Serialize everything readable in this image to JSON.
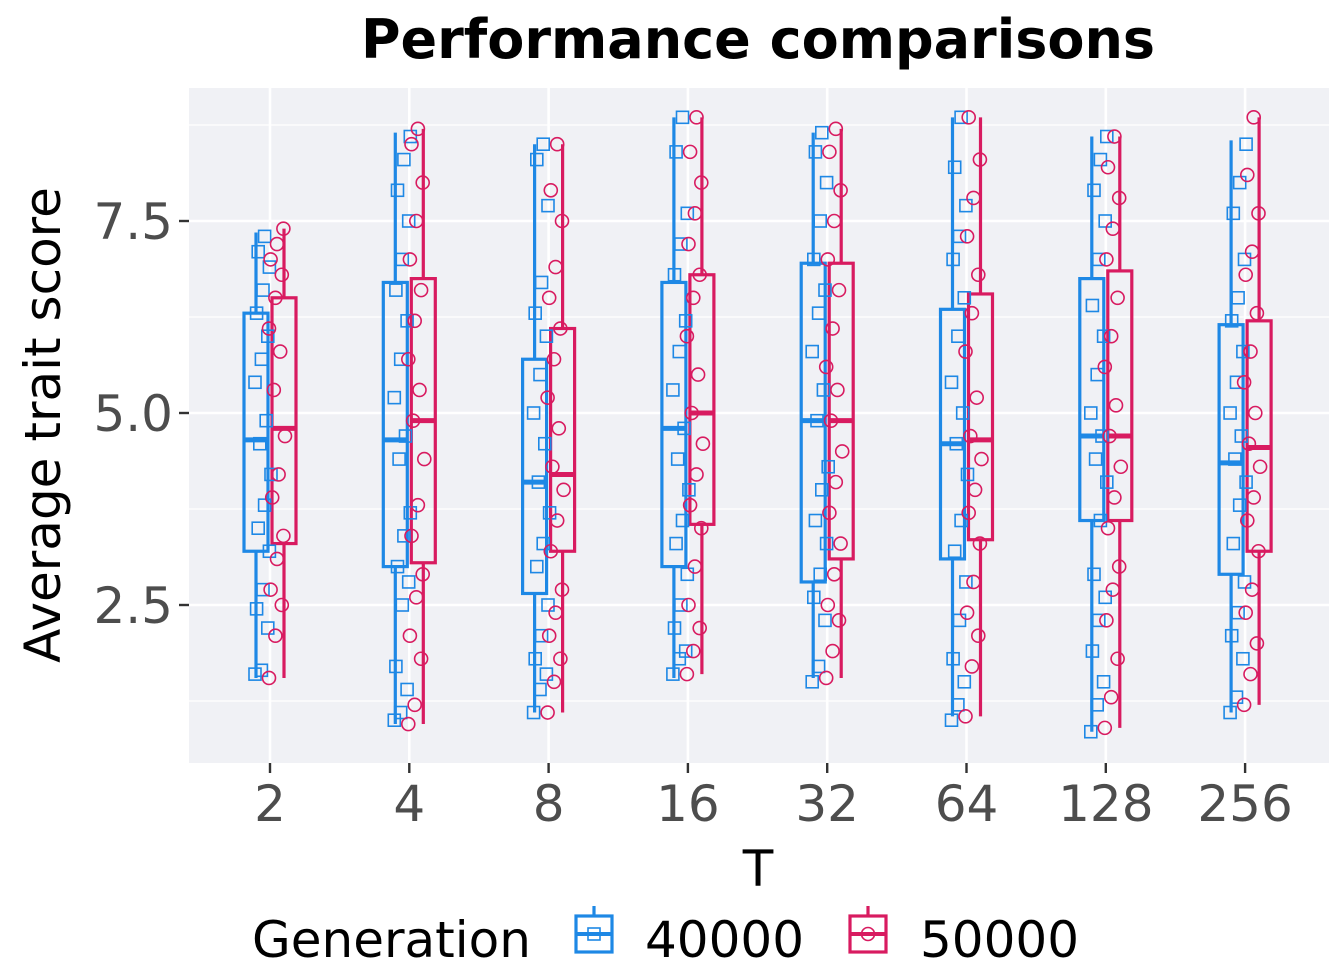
{
  "chart_data": {
    "type": "boxplot",
    "title": "Performance comparisons",
    "xlabel": "T",
    "ylabel": "Average trait score",
    "categories": [
      "2",
      "4",
      "8",
      "16",
      "32",
      "64",
      "128",
      "256"
    ],
    "y_ticks": [
      2.5,
      5.0,
      7.5
    ],
    "y_tick_labels": [
      "2.5",
      "5.0",
      "7.5"
    ],
    "ylim": [
      0.5,
      9.2
    ],
    "grid": true,
    "legend": {
      "title": "Generation",
      "position": "bottom",
      "entries": [
        "40000",
        "50000"
      ]
    },
    "series": [
      {
        "name": "40000",
        "color": "#1e88e5",
        "marker": "square",
        "boxes": [
          {
            "min": 1.55,
            "q1": 3.2,
            "median": 4.65,
            "q3": 6.3,
            "max": 7.35
          },
          {
            "min": 0.95,
            "q1": 3.0,
            "median": 4.65,
            "q3": 6.7,
            "max": 8.65
          },
          {
            "min": 1.1,
            "q1": 2.65,
            "median": 4.1,
            "q3": 5.7,
            "max": 8.5
          },
          {
            "min": 1.55,
            "q1": 3.0,
            "median": 4.8,
            "q3": 6.7,
            "max": 8.85
          },
          {
            "min": 1.55,
            "q1": 2.8,
            "median": 4.9,
            "q3": 6.95,
            "max": 8.65
          },
          {
            "min": 1.05,
            "q1": 3.1,
            "median": 4.6,
            "q3": 6.35,
            "max": 8.85
          },
          {
            "min": 0.85,
            "q1": 3.6,
            "median": 4.7,
            "q3": 6.75,
            "max": 8.6
          },
          {
            "min": 1.1,
            "q1": 2.9,
            "median": 4.35,
            "q3": 6.15,
            "max": 8.55
          }
        ],
        "points": [
          [
            1.6,
            1.65,
            2.2,
            2.45,
            2.7,
            3.2,
            3.5,
            3.8,
            4.2,
            4.6,
            4.9,
            5.4,
            5.7,
            6.0,
            6.3,
            6.6,
            6.9,
            7.1,
            7.3
          ],
          [
            1.0,
            1.1,
            1.4,
            1.7,
            2.5,
            2.8,
            3.0,
            3.4,
            3.7,
            4.4,
            4.7,
            5.2,
            5.7,
            6.2,
            6.6,
            7.0,
            7.5,
            7.9,
            8.3,
            8.6
          ],
          [
            1.1,
            1.4,
            1.6,
            1.8,
            2.1,
            2.5,
            3.0,
            3.3,
            3.7,
            4.1,
            4.6,
            5.0,
            5.5,
            6.0,
            6.3,
            6.7,
            7.7,
            8.3,
            8.5
          ],
          [
            1.6,
            1.8,
            1.9,
            2.2,
            2.5,
            2.9,
            3.3,
            3.6,
            4.0,
            4.4,
            4.8,
            5.3,
            5.8,
            6.2,
            6.8,
            7.2,
            7.6,
            8.4,
            8.85
          ],
          [
            1.5,
            1.7,
            2.3,
            2.6,
            2.9,
            3.3,
            3.6,
            4.0,
            4.3,
            4.9,
            5.3,
            5.8,
            6.3,
            6.6,
            7.0,
            7.5,
            8.0,
            8.4,
            8.65
          ],
          [
            1.0,
            1.2,
            1.5,
            1.8,
            2.3,
            2.8,
            3.2,
            3.6,
            4.2,
            4.6,
            5.0,
            5.4,
            6.0,
            6.5,
            7.0,
            7.3,
            7.7,
            8.2,
            8.85
          ],
          [
            0.85,
            1.2,
            1.5,
            1.9,
            2.3,
            2.6,
            2.9,
            3.6,
            4.1,
            4.4,
            4.7,
            5.0,
            5.5,
            6.0,
            6.4,
            7.0,
            7.5,
            7.9,
            8.3,
            8.6
          ],
          [
            1.1,
            1.3,
            1.8,
            2.1,
            2.4,
            2.8,
            3.3,
            3.8,
            4.1,
            4.4,
            4.7,
            5.0,
            5.4,
            5.8,
            6.2,
            6.5,
            7.0,
            7.6,
            8.0,
            8.5
          ]
        ]
      },
      {
        "name": "50000",
        "color": "#d81b60",
        "marker": "circle",
        "boxes": [
          {
            "min": 1.55,
            "q1": 3.3,
            "median": 4.8,
            "q3": 6.5,
            "max": 7.4
          },
          {
            "min": 0.95,
            "q1": 3.05,
            "median": 4.9,
            "q3": 6.75,
            "max": 8.7
          },
          {
            "min": 1.1,
            "q1": 3.2,
            "median": 4.2,
            "q3": 6.1,
            "max": 8.5
          },
          {
            "min": 1.6,
            "q1": 3.55,
            "median": 5.0,
            "q3": 6.8,
            "max": 8.85
          },
          {
            "min": 1.55,
            "q1": 3.1,
            "median": 4.9,
            "q3": 6.95,
            "max": 8.7
          },
          {
            "min": 1.05,
            "q1": 3.35,
            "median": 4.65,
            "q3": 6.55,
            "max": 8.85
          },
          {
            "min": 0.9,
            "q1": 3.6,
            "median": 4.7,
            "q3": 6.85,
            "max": 8.6
          },
          {
            "min": 1.2,
            "q1": 3.2,
            "median": 4.55,
            "q3": 6.2,
            "max": 8.85
          }
        ],
        "points": [
          [
            1.55,
            2.1,
            2.5,
            2.7,
            3.1,
            3.4,
            3.9,
            4.2,
            4.7,
            5.3,
            5.8,
            6.1,
            6.5,
            6.8,
            7.0,
            7.2,
            7.4
          ],
          [
            0.95,
            1.2,
            1.8,
            2.1,
            2.6,
            2.9,
            3.4,
            3.8,
            4.4,
            4.9,
            5.3,
            5.7,
            6.2,
            6.6,
            7.0,
            7.5,
            8.0,
            8.5,
            8.7
          ],
          [
            1.1,
            1.5,
            1.8,
            2.1,
            2.4,
            2.7,
            3.2,
            3.6,
            4.0,
            4.3,
            4.8,
            5.2,
            5.7,
            6.1,
            6.5,
            6.9,
            7.5,
            7.9,
            8.5
          ],
          [
            1.6,
            1.9,
            2.2,
            2.5,
            3.0,
            3.5,
            3.8,
            4.2,
            4.6,
            5.0,
            5.5,
            6.0,
            6.5,
            6.8,
            7.2,
            7.6,
            8.0,
            8.4,
            8.85
          ],
          [
            1.55,
            1.9,
            2.3,
            2.5,
            2.9,
            3.3,
            3.7,
            4.1,
            4.5,
            4.9,
            5.3,
            5.6,
            6.1,
            6.6,
            7.0,
            7.5,
            7.9,
            8.4,
            8.7
          ],
          [
            1.05,
            1.7,
            2.1,
            2.4,
            2.8,
            3.3,
            3.7,
            4.0,
            4.4,
            4.7,
            5.2,
            5.8,
            6.3,
            6.8,
            7.3,
            7.8,
            8.3,
            8.85
          ],
          [
            0.9,
            1.3,
            1.8,
            2.3,
            2.7,
            3.0,
            3.5,
            3.9,
            4.3,
            4.7,
            5.1,
            5.6,
            6.0,
            6.5,
            7.0,
            7.4,
            7.8,
            8.2,
            8.6
          ],
          [
            1.2,
            1.6,
            2.0,
            2.4,
            2.7,
            3.2,
            3.6,
            3.9,
            4.3,
            4.6,
            5.0,
            5.4,
            5.8,
            6.3,
            6.8,
            7.1,
            7.6,
            8.1,
            8.85
          ]
        ]
      }
    ]
  }
}
